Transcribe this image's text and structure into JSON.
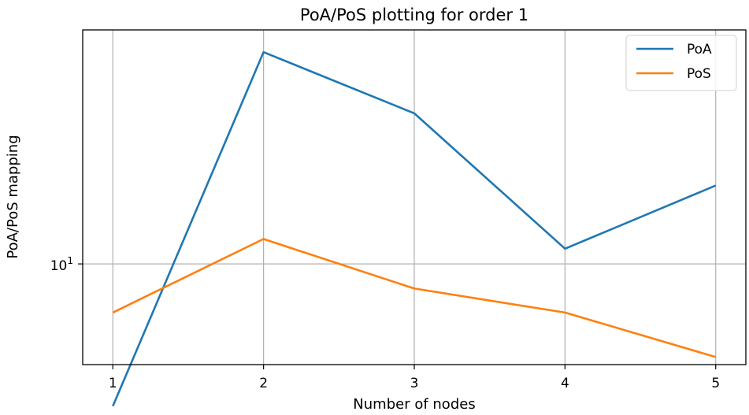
{
  "chart_data": {
    "type": "line",
    "title": "PoA/PoS plotting for order 1",
    "xlabel": "Number of nodes",
    "ylabel": "PoA/PoS mapping",
    "x": [
      1,
      2,
      3,
      4,
      5
    ],
    "xticks": [
      "1",
      "2",
      "3",
      "4",
      "5"
    ],
    "xlim": [
      0.8,
      5.2
    ],
    "yscale": "log",
    "ylim": [
      6.8,
      24.5
    ],
    "yticks": [
      {
        "value": 10,
        "base": "10",
        "exp": "1"
      }
    ],
    "series": [
      {
        "name": "PoA",
        "color": "#1f77b4",
        "values": [
          5.8,
          22.5,
          17.8,
          10.6,
          13.5
        ]
      },
      {
        "name": "PoS",
        "color": "#ff7f0e",
        "values": [
          8.3,
          11.0,
          9.1,
          8.3,
          7.0
        ]
      }
    ],
    "grid": true,
    "legend_position": "top-right"
  }
}
